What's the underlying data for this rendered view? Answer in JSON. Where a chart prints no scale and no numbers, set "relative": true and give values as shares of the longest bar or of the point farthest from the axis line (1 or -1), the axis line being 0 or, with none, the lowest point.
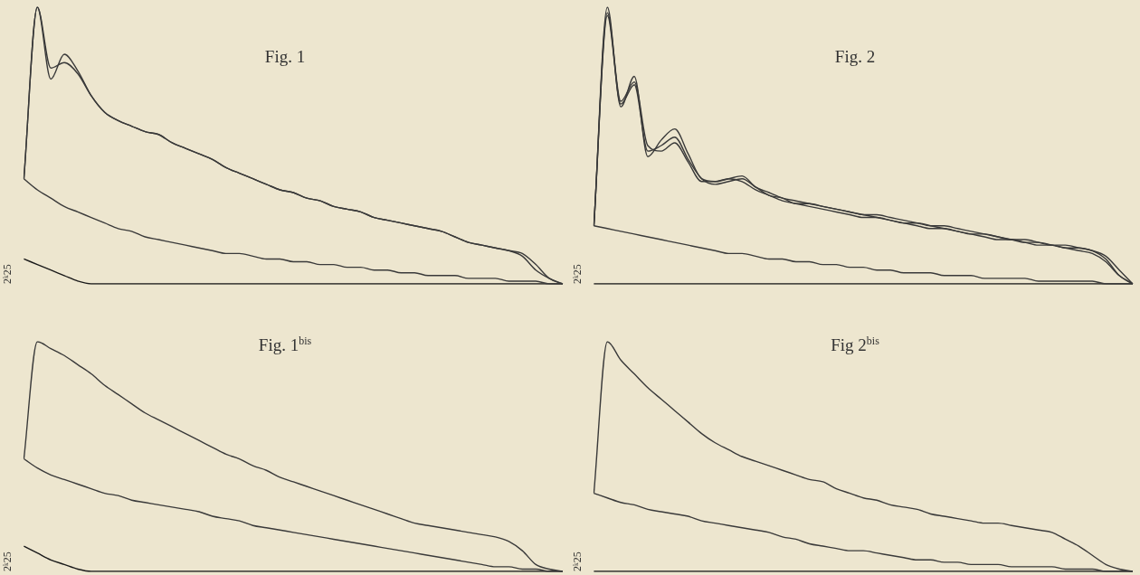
{
  "chart_data": [
    {
      "type": "line",
      "title": "Fig. 1",
      "ylabel": "2ᵏ25",
      "relative": true,
      "categories": [
        null,
        null,
        null,
        null,
        null,
        null,
        null,
        null,
        null,
        null,
        null,
        null,
        null,
        null,
        null,
        null,
        null,
        null,
        null,
        null,
        null,
        null,
        null,
        null,
        null,
        null,
        null,
        null,
        null,
        null,
        null,
        null,
        null,
        null,
        null,
        null,
        null,
        null,
        null,
        null,
        null
      ],
      "series": [
        {
          "color": "#3a3a3a",
          "values": [
            0.38,
            1.0,
            0.74,
            0.83,
            0.77,
            0.68,
            0.62,
            0.59,
            0.57,
            0.55,
            0.54,
            0.51,
            0.49,
            0.47,
            0.45,
            0.42,
            0.4,
            0.38,
            0.36,
            0.34,
            0.33,
            0.31,
            0.3,
            0.28,
            0.27,
            0.26,
            0.24,
            0.23,
            0.22,
            0.21,
            0.2,
            0.19,
            0.17,
            0.15,
            0.14,
            0.13,
            0.12,
            0.1,
            0.05,
            0.02,
            0
          ]
        },
        {
          "color": "#3a3a3a",
          "values": [
            0.38,
            1.0,
            0.78,
            0.8,
            0.76,
            0.68,
            0.62,
            0.59,
            0.57,
            0.55,
            0.54,
            0.51,
            0.49,
            0.47,
            0.45,
            0.42,
            0.4,
            0.38,
            0.36,
            0.34,
            0.33,
            0.31,
            0.3,
            0.28,
            0.27,
            0.26,
            0.24,
            0.23,
            0.22,
            0.21,
            0.2,
            0.19,
            0.17,
            0.15,
            0.14,
            0.13,
            0.12,
            0.11,
            0.07,
            0.02,
            0
          ]
        },
        {
          "color": "#3a3a3a",
          "values": [
            0.38,
            0.34,
            0.31,
            0.28,
            0.26,
            0.24,
            0.22,
            0.2,
            0.19,
            0.17,
            0.16,
            0.15,
            0.14,
            0.13,
            0.12,
            0.11,
            0.11,
            0.1,
            0.09,
            0.09,
            0.08,
            0.08,
            0.07,
            0.07,
            0.06,
            0.06,
            0.05,
            0.05,
            0.04,
            0.04,
            0.03,
            0.03,
            0.03,
            0.02,
            0.02,
            0.02,
            0.01,
            0.01,
            0.01,
            0,
            0
          ]
        },
        {
          "color": "#1a1a1a",
          "values": [
            0.09,
            0.07,
            0.05,
            0.03,
            0.01,
            0,
            0,
            0,
            0,
            0,
            0,
            0,
            0,
            0,
            0,
            0,
            0,
            0,
            0,
            0,
            0,
            0,
            0,
            0,
            0,
            0,
            0,
            0,
            0,
            0,
            0,
            0,
            0,
            0,
            0,
            0,
            0,
            0,
            0,
            0,
            0
          ]
        }
      ]
    },
    {
      "type": "line",
      "title": "Fig. 2",
      "ylabel": "2ᵏ25",
      "relative": true,
      "categories": [
        null,
        null,
        null,
        null,
        null,
        null,
        null,
        null,
        null,
        null,
        null,
        null,
        null,
        null,
        null,
        null,
        null,
        null,
        null,
        null,
        null,
        null,
        null,
        null,
        null,
        null,
        null,
        null,
        null,
        null,
        null,
        null,
        null,
        null,
        null,
        null,
        null,
        null,
        null,
        null,
        null
      ],
      "series": [
        {
          "color": "#3a3a3a",
          "values": [
            0.21,
            1.0,
            0.64,
            0.75,
            0.46,
            0.52,
            0.56,
            0.47,
            0.38,
            0.37,
            0.38,
            0.39,
            0.35,
            0.33,
            0.31,
            0.3,
            0.29,
            0.28,
            0.27,
            0.26,
            0.25,
            0.25,
            0.24,
            0.23,
            0.22,
            0.21,
            0.21,
            0.2,
            0.19,
            0.18,
            0.17,
            0.16,
            0.16,
            0.15,
            0.14,
            0.14,
            0.13,
            0.12,
            0.09,
            0.03,
            0
          ]
        },
        {
          "color": "#3a3a3a",
          "values": [
            0.21,
            0.98,
            0.66,
            0.73,
            0.5,
            0.48,
            0.51,
            0.44,
            0.37,
            0.37,
            0.38,
            0.37,
            0.34,
            0.32,
            0.3,
            0.29,
            0.28,
            0.27,
            0.26,
            0.25,
            0.24,
            0.24,
            0.23,
            0.22,
            0.21,
            0.2,
            0.2,
            0.19,
            0.18,
            0.17,
            0.16,
            0.16,
            0.15,
            0.14,
            0.14,
            0.13,
            0.13,
            0.12,
            0.1,
            0.05,
            0
          ]
        },
        {
          "color": "#3a3a3a",
          "values": [
            0.21,
            0.97,
            0.65,
            0.72,
            0.48,
            0.5,
            0.53,
            0.45,
            0.38,
            0.36,
            0.37,
            0.38,
            0.35,
            0.32,
            0.31,
            0.29,
            0.29,
            0.28,
            0.27,
            0.26,
            0.25,
            0.24,
            0.23,
            0.22,
            0.22,
            0.21,
            0.2,
            0.19,
            0.18,
            0.18,
            0.17,
            0.16,
            0.15,
            0.15,
            0.14,
            0.13,
            0.12,
            0.11,
            0.08,
            0.03,
            0
          ]
        },
        {
          "color": "#3a3a3a",
          "values": [
            0.21,
            0.2,
            0.19,
            0.18,
            0.17,
            0.16,
            0.15,
            0.14,
            0.13,
            0.12,
            0.11,
            0.11,
            0.1,
            0.09,
            0.09,
            0.08,
            0.08,
            0.07,
            0.07,
            0.06,
            0.06,
            0.05,
            0.05,
            0.04,
            0.04,
            0.04,
            0.03,
            0.03,
            0.03,
            0.02,
            0.02,
            0.02,
            0.02,
            0.01,
            0.01,
            0.01,
            0.01,
            0.01,
            0,
            0,
            0
          ]
        },
        {
          "color": "#1a1a1a",
          "values": [
            0,
            0,
            0,
            0,
            0,
            0,
            0,
            0,
            0,
            0,
            0,
            0,
            0,
            0,
            0,
            0,
            0,
            0,
            0,
            0,
            0,
            0,
            0,
            0,
            0,
            0,
            0,
            0,
            0,
            0,
            0,
            0,
            0,
            0,
            0,
            0,
            0,
            0,
            0,
            0,
            0
          ]
        }
      ]
    },
    {
      "type": "line",
      "title": "Fig. 1$^{bis}$",
      "ylabel": "2ᵏ25",
      "relative": true,
      "categories": [
        null,
        null,
        null,
        null,
        null,
        null,
        null,
        null,
        null,
        null,
        null,
        null,
        null,
        null,
        null,
        null,
        null,
        null,
        null,
        null,
        null,
        null,
        null,
        null,
        null,
        null,
        null,
        null,
        null,
        null,
        null,
        null,
        null,
        null,
        null,
        null,
        null,
        null,
        null,
        null,
        null
      ],
      "series": [
        {
          "color": "#3a3a3a",
          "values": [
            0.49,
            1.0,
            0.97,
            0.94,
            0.9,
            0.86,
            0.81,
            0.77,
            0.73,
            0.69,
            0.66,
            0.63,
            0.6,
            0.57,
            0.54,
            0.51,
            0.49,
            0.46,
            0.44,
            0.41,
            0.39,
            0.37,
            0.35,
            0.33,
            0.31,
            0.29,
            0.27,
            0.25,
            0.23,
            0.21,
            0.2,
            0.19,
            0.18,
            0.17,
            0.16,
            0.15,
            0.13,
            0.09,
            0.03,
            0.01,
            0
          ]
        },
        {
          "color": "#3a3a3a",
          "values": [
            0.49,
            0.45,
            0.42,
            0.4,
            0.38,
            0.36,
            0.34,
            0.33,
            0.31,
            0.3,
            0.29,
            0.28,
            0.27,
            0.26,
            0.24,
            0.23,
            0.22,
            0.2,
            0.19,
            0.18,
            0.17,
            0.16,
            0.15,
            0.14,
            0.13,
            0.12,
            0.11,
            0.1,
            0.09,
            0.08,
            0.07,
            0.06,
            0.05,
            0.04,
            0.03,
            0.02,
            0.02,
            0.01,
            0.01,
            0,
            0
          ]
        },
        {
          "color": "#1a1a1a",
          "values": [
            0.11,
            0.08,
            0.05,
            0.03,
            0.01,
            0,
            0,
            0,
            0,
            0,
            0,
            0,
            0,
            0,
            0,
            0,
            0,
            0,
            0,
            0,
            0,
            0,
            0,
            0,
            0,
            0,
            0,
            0,
            0,
            0,
            0,
            0,
            0,
            0,
            0,
            0,
            0,
            0,
            0,
            0,
            0
          ]
        }
      ]
    },
    {
      "type": "line",
      "title": "Fig 2$^{bis}$",
      "ylabel": "2ᵏ25",
      "relative": true,
      "categories": [
        null,
        null,
        null,
        null,
        null,
        null,
        null,
        null,
        null,
        null,
        null,
        null,
        null,
        null,
        null,
        null,
        null,
        null,
        null,
        null,
        null,
        null,
        null,
        null,
        null,
        null,
        null,
        null,
        null,
        null,
        null,
        null,
        null,
        null,
        null,
        null,
        null,
        null,
        null,
        null,
        null
      ],
      "series": [
        {
          "color": "#3a3a3a",
          "values": [
            0.34,
            1.0,
            0.92,
            0.86,
            0.8,
            0.75,
            0.7,
            0.65,
            0.6,
            0.56,
            0.53,
            0.5,
            0.48,
            0.46,
            0.44,
            0.42,
            0.4,
            0.39,
            0.36,
            0.34,
            0.32,
            0.31,
            0.29,
            0.28,
            0.27,
            0.25,
            0.24,
            0.23,
            0.22,
            0.21,
            0.21,
            0.2,
            0.19,
            0.18,
            0.17,
            0.14,
            0.11,
            0.07,
            0.03,
            0.01,
            0
          ]
        },
        {
          "color": "#3a3a3a",
          "values": [
            0.34,
            0.32,
            0.3,
            0.29,
            0.27,
            0.26,
            0.25,
            0.24,
            0.22,
            0.21,
            0.2,
            0.19,
            0.18,
            0.17,
            0.15,
            0.14,
            0.12,
            0.11,
            0.1,
            0.09,
            0.09,
            0.08,
            0.07,
            0.06,
            0.05,
            0.05,
            0.04,
            0.04,
            0.03,
            0.03,
            0.03,
            0.02,
            0.02,
            0.02,
            0.02,
            0.01,
            0.01,
            0.01,
            0,
            0,
            0
          ]
        },
        {
          "color": "#1a1a1a",
          "values": [
            0,
            0,
            0,
            0,
            0,
            0,
            0,
            0,
            0,
            0,
            0,
            0,
            0,
            0,
            0,
            0,
            0,
            0,
            0,
            0,
            0,
            0,
            0,
            0,
            0,
            0,
            0,
            0,
            0,
            0,
            0,
            0,
            0,
            0,
            0,
            0,
            0,
            0,
            0,
            0,
            0
          ]
        }
      ]
    }
  ]
}
